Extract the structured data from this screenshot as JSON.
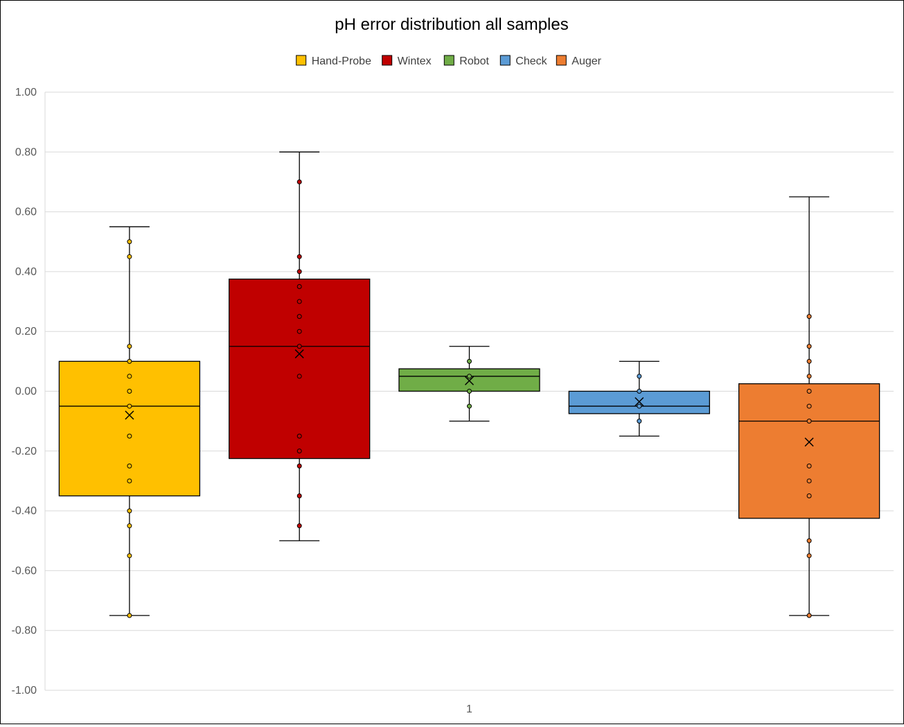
{
  "chart_data": {
    "type": "box",
    "title": "pH error distribution all samples",
    "xlabel": "",
    "ylabel": "",
    "categories": [
      "1"
    ],
    "ylim": [
      -1.0,
      1.0
    ],
    "ytick_step": 0.2,
    "ytick_decimals": 2,
    "grid": true,
    "legend_position": "top",
    "series": [
      {
        "name": "Hand-Probe",
        "color": "#FFC000",
        "whisker_low": -0.75,
        "q1": -0.35,
        "median": -0.05,
        "q3": 0.1,
        "whisker_high": 0.55,
        "mean": -0.08,
        "points": [
          0.5,
          0.45,
          0.15,
          0.1,
          0.05,
          0.0,
          -0.05,
          -0.15,
          -0.25,
          -0.3,
          -0.4,
          -0.45,
          -0.55,
          -0.75
        ]
      },
      {
        "name": "Wintex",
        "color": "#C00000",
        "whisker_low": -0.5,
        "q1": -0.225,
        "median": 0.15,
        "q3": 0.375,
        "whisker_high": 0.8,
        "mean": 0.125,
        "points": [
          0.7,
          0.45,
          0.4,
          0.35,
          0.3,
          0.25,
          0.2,
          0.15,
          0.05,
          -0.15,
          -0.2,
          -0.25,
          -0.35,
          -0.45
        ]
      },
      {
        "name": "Robot",
        "color": "#70AD47",
        "whisker_low": -0.1,
        "q1": 0.0,
        "median": 0.05,
        "q3": 0.075,
        "whisker_high": 0.15,
        "mean": 0.035,
        "points": [
          0.1,
          0.05,
          0.0,
          -0.05
        ]
      },
      {
        "name": "Check",
        "color": "#5B9BD5",
        "whisker_low": -0.15,
        "q1": -0.075,
        "median": -0.05,
        "q3": 0.0,
        "whisker_high": 0.1,
        "mean": -0.035,
        "points": [
          0.05,
          0.0,
          -0.05,
          -0.1
        ]
      },
      {
        "name": "Auger",
        "color": "#ED7D31",
        "whisker_low": -0.75,
        "q1": -0.425,
        "median": -0.1,
        "q3": 0.025,
        "whisker_high": 0.65,
        "mean": -0.17,
        "points": [
          0.25,
          0.15,
          0.1,
          0.05,
          0.0,
          -0.05,
          -0.1,
          -0.25,
          -0.3,
          -0.35,
          -0.5,
          -0.55,
          -0.75
        ]
      }
    ]
  }
}
